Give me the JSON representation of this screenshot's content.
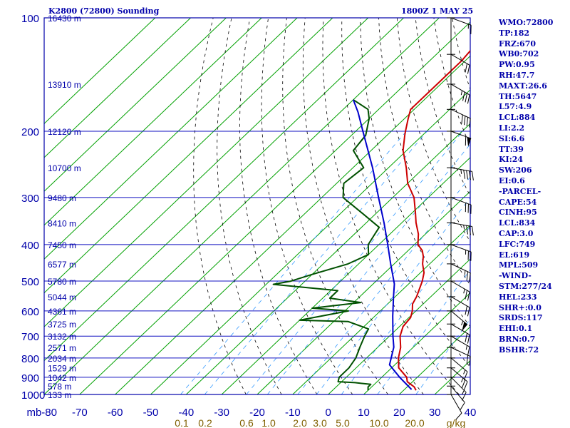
{
  "header": {
    "title": "K2800 (72800) Sounding",
    "valid_time": "1800Z  1 MAY 25"
  },
  "indices": [
    "WMO:72800",
    "TP:182",
    "FRZ:670",
    "WB0:702",
    "PW:0.95",
    "RH:47.7",
    "MAXT:26.6",
    "TH:5647",
    "L57:4.9",
    "LCL:884",
    "LI:2.2",
    "SI:6.6",
    "TT:39",
    "KI:24",
    "SW:206",
    "EI:0.6",
    "-PARCEL-",
    "CAPE:54",
    "CINH:95",
    "LCL:834",
    "CAP:3.0",
    "LFC:749",
    "EL:619",
    "MPL:509",
    "-WIND-",
    "STM:277/24",
    "HEL:233",
    "SHR+:0.0",
    "SRDS:117",
    "EHI:0.1",
    "BRN:0.7",
    "BSHR:72"
  ],
  "chart_data": {
    "type": "line",
    "diagram": "skew-T log-P",
    "title": "K2800 (72800) Sounding",
    "valid_time": "1800Z  1 MAY 25",
    "y_axis": {
      "unit": "mb",
      "scale": "log",
      "range": [
        100,
        1000
      ],
      "ticks": [
        100,
        200,
        300,
        400,
        500,
        600,
        700,
        800,
        900,
        1000
      ]
    },
    "x_axis": {
      "unit": "C",
      "range": [
        -80,
        40
      ],
      "ticks": [
        -80,
        -70,
        -60,
        -50,
        -40,
        -30,
        -20,
        -10,
        0,
        10,
        20,
        30,
        40
      ],
      "tick_labels": [
        "mb-80",
        "-70",
        "-60",
        "-50",
        "-40",
        "-30",
        "-20",
        "-10",
        "0",
        "10",
        "20",
        "30",
        "40"
      ]
    },
    "mixing_ratio_labels": [
      "0.1",
      "0.2",
      "0.6",
      "1.0",
      "2.0",
      "3.0",
      "5.0",
      "10.0",
      "20.0",
      "g/kg"
    ],
    "height_labels": [
      {
        "p": 100,
        "label": "16430 m"
      },
      {
        "p": 150,
        "label": "13910 m"
      },
      {
        "p": 200,
        "label": "12120 m"
      },
      {
        "p": 250,
        "label": "10700 m"
      },
      {
        "p": 300,
        "label": "9480 m"
      },
      {
        "p": 350,
        "label": "8410 m"
      },
      {
        "p": 400,
        "label": "7450 m"
      },
      {
        "p": 450,
        "label": "6577 m"
      },
      {
        "p": 500,
        "label": "5780 m"
      },
      {
        "p": 550,
        "label": "5044 m"
      },
      {
        "p": 600,
        "label": "4361 m"
      },
      {
        "p": 650,
        "label": "3725 m"
      },
      {
        "p": 700,
        "label": "3132 m"
      },
      {
        "p": 750,
        "label": "2571 m"
      },
      {
        "p": 800,
        "label": "2034 m"
      },
      {
        "p": 850,
        "label": "1529 m"
      },
      {
        "p": 900,
        "label": "1042 m"
      },
      {
        "p": 950,
        "label": "578 m"
      },
      {
        "p": 1000,
        "label": "133 m"
      }
    ],
    "series": [
      {
        "key": "temperature",
        "color": "#cc0000",
        "points": [
          {
            "p": 975,
            "t": 23.5
          },
          {
            "p": 955,
            "t": 22
          },
          {
            "p": 925,
            "t": 18.5
          },
          {
            "p": 900,
            "t": 17
          },
          {
            "p": 850,
            "t": 12
          },
          {
            "p": 800,
            "t": 9
          },
          {
            "p": 750,
            "t": 6.5
          },
          {
            "p": 700,
            "t": 3
          },
          {
            "p": 660,
            "t": 1
          },
          {
            "p": 625,
            "t": 0.5
          },
          {
            "p": 600,
            "t": -1
          },
          {
            "p": 575,
            "t": -3
          },
          {
            "p": 550,
            "t": -4
          },
          {
            "p": 500,
            "t": -7
          },
          {
            "p": 475,
            "t": -9
          },
          {
            "p": 450,
            "t": -12
          },
          {
            "p": 430,
            "t": -14
          },
          {
            "p": 415,
            "t": -16
          },
          {
            "p": 400,
            "t": -19
          },
          {
            "p": 375,
            "t": -22
          },
          {
            "p": 350,
            "t": -26
          },
          {
            "p": 330,
            "t": -29
          },
          {
            "p": 300,
            "t": -34
          },
          {
            "p": 275,
            "t": -40
          },
          {
            "p": 250,
            "t": -45
          },
          {
            "p": 225,
            "t": -51
          },
          {
            "p": 205,
            "t": -55
          },
          {
            "p": 200,
            "t": -56
          },
          {
            "p": 185,
            "t": -59
          },
          {
            "p": 175,
            "t": -61
          },
          {
            "p": 150,
            "t": -61
          },
          {
            "p": 130,
            "t": -61
          },
          {
            "p": 115,
            "t": -62
          },
          {
            "p": 105,
            "t": -65
          },
          {
            "p": 100,
            "t": -65
          }
        ]
      },
      {
        "key": "dewpoint",
        "color": "#005000",
        "points": [
          {
            "p": 975,
            "t": 10
          },
          {
            "p": 955,
            "t": 9
          },
          {
            "p": 940,
            "t": 9
          },
          {
            "p": 930,
            "t": 4
          },
          {
            "p": 925,
            "t": -1
          },
          {
            "p": 900,
            "t": -2
          },
          {
            "p": 850,
            "t": -2
          },
          {
            "p": 800,
            "t": -3
          },
          {
            "p": 750,
            "t": -5
          },
          {
            "p": 700,
            "t": -7
          },
          {
            "p": 670,
            "t": -8
          },
          {
            "p": 640,
            "t": -16
          },
          {
            "p": 635,
            "t": -30
          },
          {
            "p": 600,
            "t": -19
          },
          {
            "p": 590,
            "t": -30
          },
          {
            "p": 570,
            "t": -18
          },
          {
            "p": 555,
            "t": -28
          },
          {
            "p": 530,
            "t": -28
          },
          {
            "p": 510,
            "t": -48
          },
          {
            "p": 500,
            "t": -44
          },
          {
            "p": 480,
            "t": -40
          },
          {
            "p": 450,
            "t": -33
          },
          {
            "p": 425,
            "t": -30
          },
          {
            "p": 400,
            "t": -33
          },
          {
            "p": 380,
            "t": -34
          },
          {
            "p": 360,
            "t": -35
          },
          {
            "p": 330,
            "t": -44
          },
          {
            "p": 300,
            "t": -54
          },
          {
            "p": 275,
            "t": -58
          },
          {
            "p": 250,
            "t": -57
          },
          {
            "p": 225,
            "t": -65
          },
          {
            "p": 205,
            "t": -66
          },
          {
            "p": 185,
            "t": -70
          },
          {
            "p": 175,
            "t": -73
          },
          {
            "p": 165,
            "t": -80
          }
        ]
      },
      {
        "key": "parcel",
        "color": "#0000cc",
        "points": [
          {
            "p": 970,
            "t": 22
          },
          {
            "p": 900,
            "t": 15
          },
          {
            "p": 834,
            "t": 8.5
          },
          {
            "p": 749,
            "t": 4.5
          },
          {
            "p": 700,
            "t": 1
          },
          {
            "p": 619,
            "t": -5
          },
          {
            "p": 550,
            "t": -10.5
          },
          {
            "p": 509,
            "t": -14
          },
          {
            "p": 450,
            "t": -21
          },
          {
            "p": 400,
            "t": -27.5
          },
          {
            "p": 350,
            "t": -35
          },
          {
            "p": 300,
            "t": -44
          },
          {
            "p": 250,
            "t": -54.5
          },
          {
            "p": 200,
            "t": -68
          },
          {
            "p": 178,
            "t": -75
          },
          {
            "p": 165,
            "t": -80
          }
        ]
      }
    ],
    "wind_barbs": [
      {
        "p": 100,
        "dir": 250,
        "kt": 15
      },
      {
        "p": 125,
        "dir": 240,
        "kt": 20
      },
      {
        "p": 150,
        "dir": 240,
        "kt": 35
      },
      {
        "p": 175,
        "dir": 245,
        "kt": 40
      },
      {
        "p": 200,
        "dir": 250,
        "kt": 60
      },
      {
        "p": 250,
        "dir": 260,
        "kt": 45
      },
      {
        "p": 300,
        "dir": 250,
        "kt": 30
      },
      {
        "p": 350,
        "dir": 260,
        "kt": 35
      },
      {
        "p": 400,
        "dir": 250,
        "kt": 25
      },
      {
        "p": 450,
        "dir": 245,
        "kt": 25
      },
      {
        "p": 500,
        "dir": 240,
        "kt": 25
      },
      {
        "p": 550,
        "dir": 240,
        "kt": 20
      },
      {
        "p": 600,
        "dir": 230,
        "kt": 55
      },
      {
        "p": 650,
        "dir": 240,
        "kt": 20
      },
      {
        "p": 700,
        "dir": 240,
        "kt": 15
      },
      {
        "p": 750,
        "dir": 245,
        "kt": 20
      },
      {
        "p": 800,
        "dir": 230,
        "kt": 15
      },
      {
        "p": 850,
        "dir": 230,
        "kt": 25
      },
      {
        "p": 900,
        "dir": 225,
        "kt": 15
      },
      {
        "p": 950,
        "dir": 220,
        "kt": 10
      },
      {
        "p": 1000,
        "dir": 210,
        "kt": 10
      }
    ],
    "grid": true,
    "colors": {
      "frame": "#0000aa",
      "isobar": "#1010c0",
      "isotherm": "#00a000",
      "dry_adiabat": "#000000",
      "mixing_ratio": "#3399ff",
      "mixing_label": "#806000",
      "text": "#0000aa",
      "temperature": "#cc0000",
      "dewpoint": "#005000",
      "parcel": "#0000cc"
    }
  }
}
